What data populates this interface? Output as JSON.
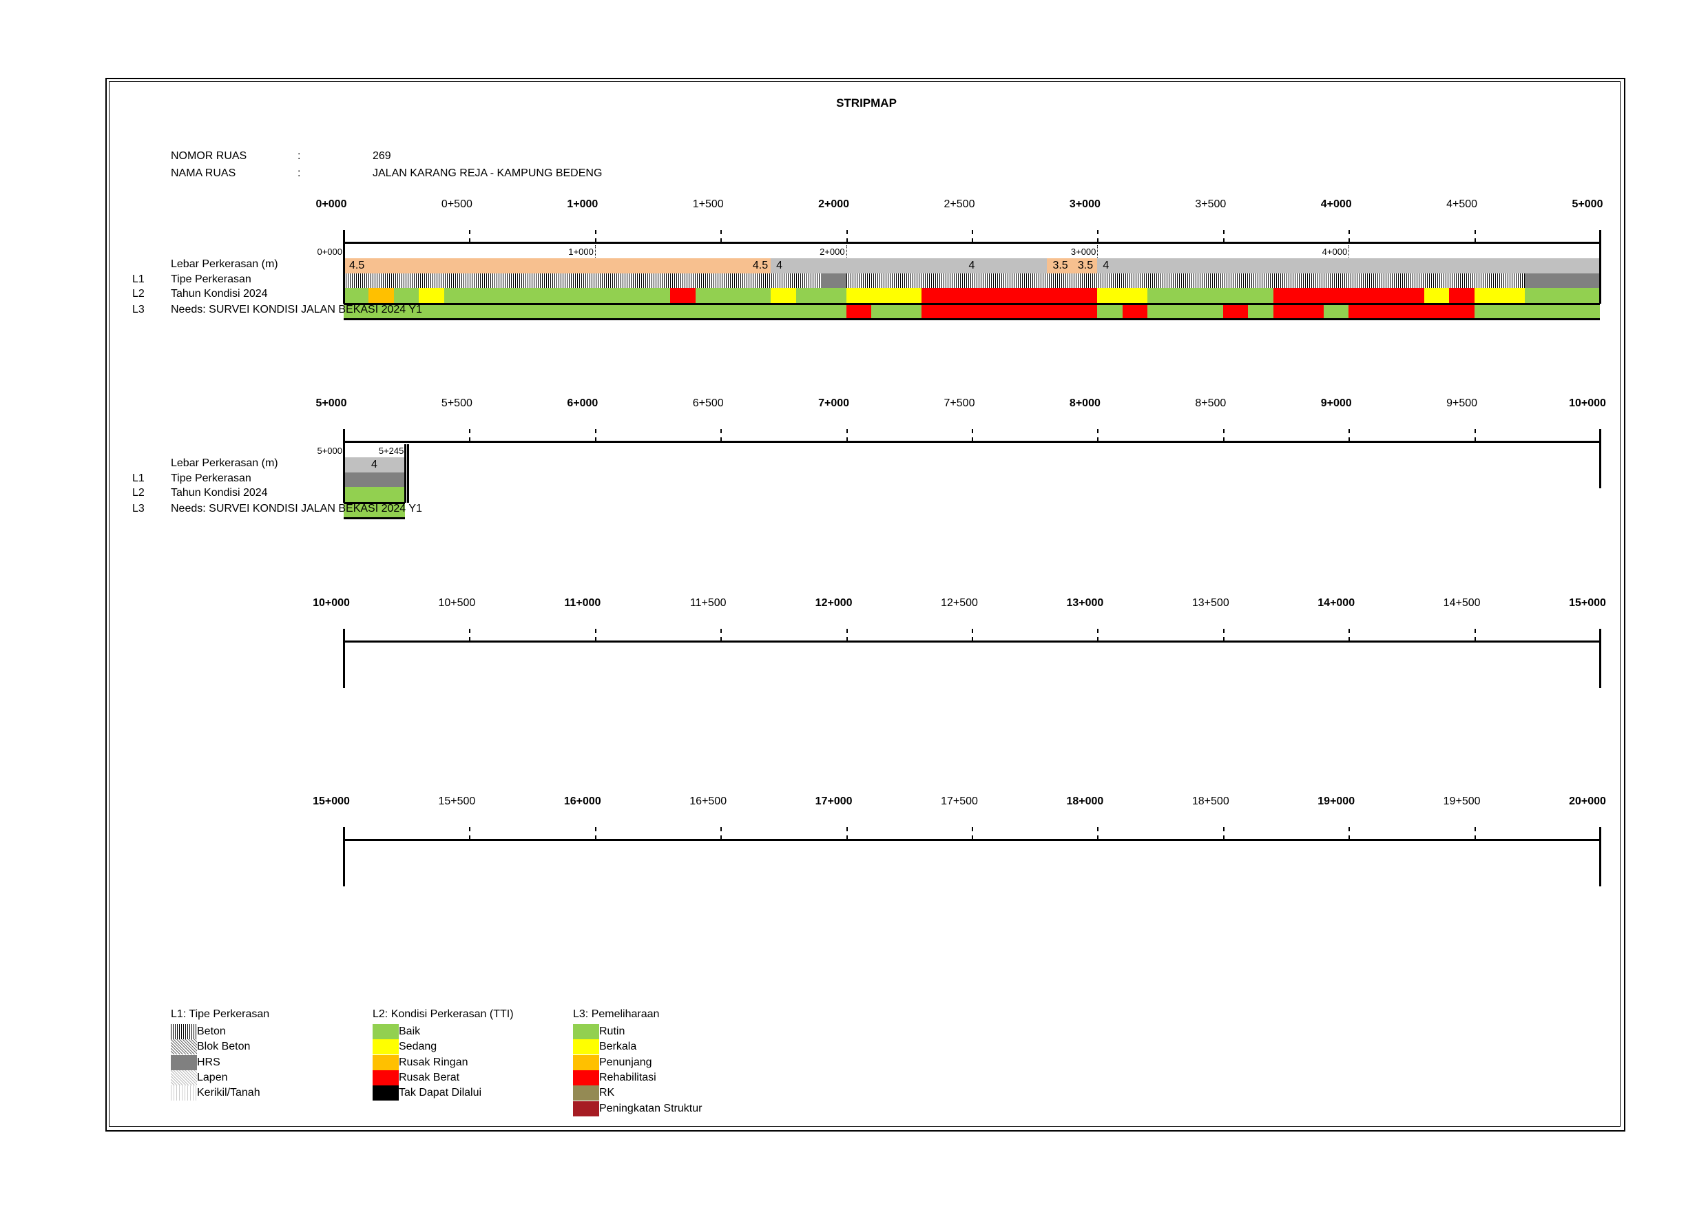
{
  "title": "STRIPMAP",
  "header": {
    "nomor_label": "NOMOR RUAS",
    "nomor_sep": ":",
    "nomor_value": "269",
    "nama_label": "NAMA RUAS",
    "nama_sep": ":",
    "nama_value": "JALAN KARANG REJA - KAMPUNG BEDENG"
  },
  "row_labels": {
    "lebar": "Lebar Perkerasan (m)",
    "l1_code": "L1",
    "l1": "Tipe Perkerasan",
    "l2_code": "L2",
    "l2": "Tahun Kondisi 2024",
    "l3_code": "L3",
    "l3": "Needs: SURVEI KONDISI JALAN BEKASI 2024 Y1"
  },
  "colors": {
    "peach": "#F7C08F",
    "grey": "#C0C0C0",
    "Baik": "#92D050",
    "Sedang": "#FFFF00",
    "Rusak Ringan": "#FFC000",
    "Rusak Berat": "#FF0000",
    "Tak Dapat Dilalui": "#000000",
    "Rutin": "#92D050",
    "Berkala": "#FFFF00",
    "Penunjang": "#FFC000",
    "Rehabilitasi": "#FF0000",
    "RK": "#948A54",
    "Peningkatan Struktur": "#A61C23"
  },
  "strips": [
    {
      "start": 0,
      "km_labels": [
        "0+000",
        "0+500",
        "1+000",
        "1+500",
        "2+000",
        "2+500",
        "3+000",
        "3+500",
        "4+000",
        "4+500",
        "5+000"
      ],
      "has_data": true,
      "end": 5000,
      "small_labels": [
        {
          "at": 0,
          "text": "0+000"
        },
        {
          "at": 1000,
          "text": "1+000"
        },
        {
          "at": 2000,
          "text": "2+000"
        },
        {
          "at": 3000,
          "text": "3+000"
        },
        {
          "at": 4000,
          "text": "4+000"
        }
      ],
      "lebar": [
        {
          "from": 0,
          "to": 1700,
          "value": 4.5,
          "color": "peach"
        },
        {
          "from": 1700,
          "to": 2800,
          "value": 4,
          "color": "grey"
        },
        {
          "from": 2800,
          "to": 2900,
          "value": 3.5,
          "color": "peach"
        },
        {
          "from": 2900,
          "to": 3000,
          "value": 3.5,
          "color": "peach"
        },
        {
          "from": 3000,
          "to": 5000,
          "value": 4,
          "color": "grey"
        }
      ],
      "lebar_labels": [
        {
          "at": 0,
          "text": "4.5",
          "align": "left"
        },
        {
          "at": 1700,
          "text": "4.5",
          "align": "right"
        },
        {
          "at": 1700,
          "text": "4",
          "align": "left"
        },
        {
          "at": 2500,
          "text": "4",
          "align": "center"
        },
        {
          "at": 2800,
          "text": "3.5",
          "align": "left"
        },
        {
          "at": 2900,
          "text": "3.5",
          "align": "left"
        },
        {
          "at": 3000,
          "text": "4",
          "align": "left"
        }
      ],
      "l1": [
        {
          "from": 0,
          "to": 1900,
          "type": "Beton"
        },
        {
          "from": 1900,
          "to": 2000,
          "type": "HRS"
        },
        {
          "from": 2000,
          "to": 4700,
          "type": "Beton"
        },
        {
          "from": 4700,
          "to": 5000,
          "type": "HRS"
        }
      ],
      "l2": [
        {
          "from": 0,
          "to": 100,
          "cond": "Baik"
        },
        {
          "from": 100,
          "to": 200,
          "cond": "Rusak Ringan"
        },
        {
          "from": 200,
          "to": 300,
          "cond": "Baik"
        },
        {
          "from": 300,
          "to": 400,
          "cond": "Sedang"
        },
        {
          "from": 400,
          "to": 1300,
          "cond": "Baik"
        },
        {
          "from": 1300,
          "to": 1400,
          "cond": "Rusak Berat"
        },
        {
          "from": 1400,
          "to": 1700,
          "cond": "Baik"
        },
        {
          "from": 1700,
          "to": 1800,
          "cond": "Sedang"
        },
        {
          "from": 1800,
          "to": 2000,
          "cond": "Baik"
        },
        {
          "from": 2000,
          "to": 2300,
          "cond": "Sedang"
        },
        {
          "from": 2300,
          "to": 3000,
          "cond": "Rusak Berat"
        },
        {
          "from": 3000,
          "to": 3200,
          "cond": "Sedang"
        },
        {
          "from": 3200,
          "to": 3700,
          "cond": "Baik"
        },
        {
          "from": 3700,
          "to": 4300,
          "cond": "Rusak Berat"
        },
        {
          "from": 4300,
          "to": 4400,
          "cond": "Sedang"
        },
        {
          "from": 4400,
          "to": 4500,
          "cond": "Rusak Berat"
        },
        {
          "from": 4500,
          "to": 4700,
          "cond": "Sedang"
        },
        {
          "from": 4700,
          "to": 5000,
          "cond": "Baik"
        }
      ],
      "l3": [
        {
          "from": 0,
          "to": 2000,
          "need": "Rutin"
        },
        {
          "from": 2000,
          "to": 2100,
          "need": "Rehabilitasi"
        },
        {
          "from": 2100,
          "to": 2300,
          "need": "Rutin"
        },
        {
          "from": 2300,
          "to": 3000,
          "need": "Rehabilitasi"
        },
        {
          "from": 3000,
          "to": 3100,
          "need": "Rutin"
        },
        {
          "from": 3100,
          "to": 3200,
          "need": "Rehabilitasi"
        },
        {
          "from": 3200,
          "to": 3500,
          "need": "Rutin"
        },
        {
          "from": 3500,
          "to": 3600,
          "need": "Rehabilitasi"
        },
        {
          "from": 3600,
          "to": 3700,
          "need": "Rutin"
        },
        {
          "from": 3700,
          "to": 3900,
          "need": "Rehabilitasi"
        },
        {
          "from": 3900,
          "to": 4000,
          "need": "Rutin"
        },
        {
          "from": 4000,
          "to": 4500,
          "need": "Rehabilitasi"
        },
        {
          "from": 4500,
          "to": 5000,
          "need": "Rutin"
        }
      ]
    },
    {
      "start": 5000,
      "km_labels": [
        "5+000",
        "5+500",
        "6+000",
        "6+500",
        "7+000",
        "7+500",
        "8+000",
        "8+500",
        "9+000",
        "9+500",
        "10+000"
      ],
      "has_data": true,
      "end": 5245,
      "small_labels": [
        {
          "at": 5000,
          "text": "5+000"
        },
        {
          "at": 5245,
          "text": "5+245"
        }
      ],
      "lebar": [
        {
          "from": 5000,
          "to": 5245,
          "value": 4,
          "color": "grey"
        }
      ],
      "lebar_labels": [
        {
          "at": 5122,
          "text": "4",
          "align": "center"
        }
      ],
      "l1": [
        {
          "from": 5000,
          "to": 5245,
          "type": "HRS"
        }
      ],
      "l2": [
        {
          "from": 5000,
          "to": 5245,
          "cond": "Baik"
        }
      ],
      "l3": [
        {
          "from": 5000,
          "to": 5245,
          "need": "Rutin"
        }
      ]
    },
    {
      "start": 10000,
      "km_labels": [
        "10+000",
        "10+500",
        "11+000",
        "11+500",
        "12+000",
        "12+500",
        "13+000",
        "13+500",
        "14+000",
        "14+500",
        "15+000"
      ],
      "has_data": false
    },
    {
      "start": 15000,
      "km_labels": [
        "15+000",
        "15+500",
        "16+000",
        "16+500",
        "17+000",
        "17+500",
        "18+000",
        "18+500",
        "19+000",
        "19+500",
        "20+000"
      ],
      "has_data": false
    }
  ],
  "legend": {
    "l1": {
      "title": "L1: Tipe Perkerasan",
      "items": [
        {
          "label": "Beton",
          "pattern": "beton"
        },
        {
          "label": "Blok Beton",
          "pattern": "blok"
        },
        {
          "label": "HRS",
          "pattern": "hrs"
        },
        {
          "label": "Lapen",
          "pattern": "lapen"
        },
        {
          "label": "Kerikil/Tanah",
          "pattern": "kerikil"
        }
      ]
    },
    "l2": {
      "title": "L2: Kondisi Perkerasan (TTI)",
      "items": [
        {
          "label": "Baik",
          "color": "#92D050"
        },
        {
          "label": "Sedang",
          "color": "#FFFF00"
        },
        {
          "label": "Rusak Ringan",
          "color": "#FFC000"
        },
        {
          "label": "Rusak Berat",
          "color": "#FF0000"
        },
        {
          "label": "Tak Dapat Dilalui",
          "color": "#000000"
        }
      ]
    },
    "l3": {
      "title": "L3: Pemeliharaan",
      "items": [
        {
          "label": "Rutin",
          "color": "#92D050"
        },
        {
          "label": "Berkala",
          "color": "#FFFF00"
        },
        {
          "label": "Penunjang",
          "color": "#FFC000"
        },
        {
          "label": "Rehabilitasi",
          "color": "#FF0000"
        },
        {
          "label": "RK",
          "color": "#948A54"
        },
        {
          "label": "Peningkatan Struktur",
          "color": "#A61C23"
        }
      ]
    }
  }
}
